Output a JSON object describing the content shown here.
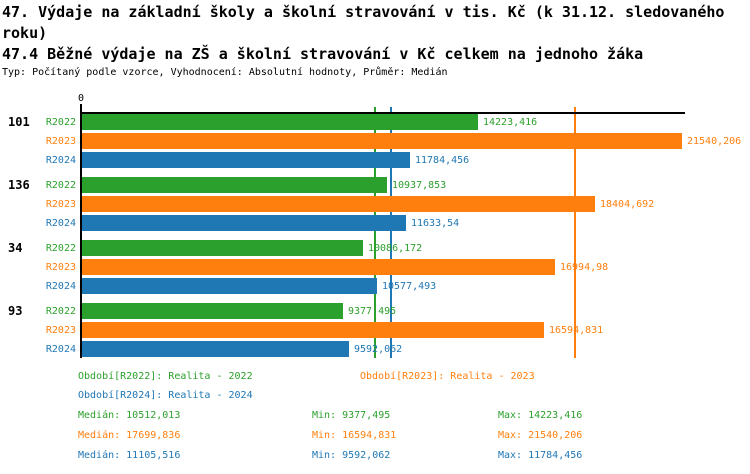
{
  "header": {
    "title": "47. Výdaje na základní školy a školní stravování v tis. Kč (k 31.12. sledovaného roku)",
    "subtitle": "47.4 Běžné výdaje na ZŠ a školní stravování v Kč celkem na jednoho žáka",
    "meta": "Typ: Počítaný podle vzorce, Vyhodnocení: Absolutní hodnoty, Průměr: Medián"
  },
  "colors": {
    "R2022": "#2ca02c",
    "R2023": "#ff7f0e",
    "R2024": "#1f77b4"
  },
  "chart_data": {
    "type": "bar",
    "orientation": "horizontal",
    "title": "47. Výdaje na základní školy a školní stravování v tis. Kč (k 31.12. sledovaného roku)",
    "subtitle": "47.4 Běžné výdaje na ZŠ a školní stravování v Kč celkem na jednoho žáka",
    "value_axis": {
      "origin_tick_label": "0",
      "min": 0,
      "grid": "off"
    },
    "series": [
      {
        "name": "R2022",
        "color": "#2ca02c",
        "median": 10512.013
      },
      {
        "name": "R2023",
        "color": "#ff7f0e",
        "median": 17699.836
      },
      {
        "name": "R2024",
        "color": "#1f77b4",
        "median": 11105.516
      }
    ],
    "groups": [
      {
        "label": "101",
        "values": [
          14223.416,
          21540.206,
          11784.456
        ],
        "displays": [
          "14223,416",
          "21540,206",
          "11784,456"
        ]
      },
      {
        "label": "136",
        "values": [
          10937.853,
          18404.692,
          11633.54
        ],
        "displays": [
          "10937,853",
          "18404,692",
          "11633,54"
        ]
      },
      {
        "label": "34",
        "values": [
          10086.172,
          16994.98,
          10577.493
        ],
        "displays": [
          "10086,172",
          "16994,98",
          "10577,493"
        ]
      },
      {
        "label": "93",
        "values": [
          9377.495,
          16594.831,
          9592.062
        ],
        "displays": [
          "9377,495",
          "16594,831",
          "9592,062"
        ]
      }
    ],
    "legend_position": "bottom"
  },
  "legend": [
    {
      "series": "R2022",
      "text": "Období[R2022]: Realita - 2022"
    },
    {
      "series": "R2023",
      "text": "Období[R2023]: Realita - 2023"
    },
    {
      "series": "R2024",
      "text": "Období[R2024]: Realita - 2024"
    }
  ],
  "stats": [
    {
      "series": "R2022",
      "median": "Medián: 10512,013",
      "min": "Min: 9377,495",
      "max": "Max: 14223,416"
    },
    {
      "series": "R2023",
      "median": "Medián: 17699,836",
      "min": "Min: 16594,831",
      "max": "Max: 21540,206"
    },
    {
      "series": "R2024",
      "median": "Medián: 11105,516",
      "min": "Min: 9592,062",
      "max": "Max: 11784,456"
    }
  ]
}
